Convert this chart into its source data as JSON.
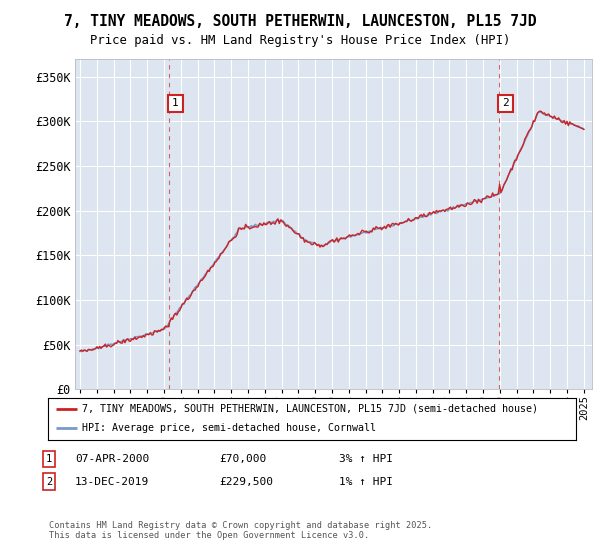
{
  "title": "7, TINY MEADOWS, SOUTH PETHERWIN, LAUNCESTON, PL15 7JD",
  "subtitle": "Price paid vs. HM Land Registry's House Price Index (HPI)",
  "background_color": "#dde6f0",
  "ylim": [
    0,
    370000
  ],
  "yticks": [
    0,
    50000,
    100000,
    150000,
    200000,
    250000,
    300000,
    350000
  ],
  "ytick_labels": [
    "£0",
    "£50K",
    "£100K",
    "£150K",
    "£200K",
    "£250K",
    "£300K",
    "£350K"
  ],
  "xlim_start": 1994.7,
  "xlim_end": 2025.5,
  "hpi_color": "#7799cc",
  "price_color": "#cc2222",
  "marker1_year": 2000.27,
  "marker1_price": 70000,
  "marker2_year": 2019.95,
  "marker2_price": 229500,
  "legend_line1": "7, TINY MEADOWS, SOUTH PETHERWIN, LAUNCESTON, PL15 7JD (semi-detached house)",
  "legend_line2": "HPI: Average price, semi-detached house, Cornwall",
  "annotation1_date": "07-APR-2000",
  "annotation1_price": "£70,000",
  "annotation1_hpi": "3% ↑ HPI",
  "annotation2_date": "13-DEC-2019",
  "annotation2_price": "£229,500",
  "annotation2_hpi": "1% ↑ HPI",
  "footer1": "Contains HM Land Registry data © Crown copyright and database right 2025.",
  "footer2": "This data is licensed under the Open Government Licence v3.0.",
  "grid_color": "#ffffff",
  "dashed_color": "#cc4444"
}
